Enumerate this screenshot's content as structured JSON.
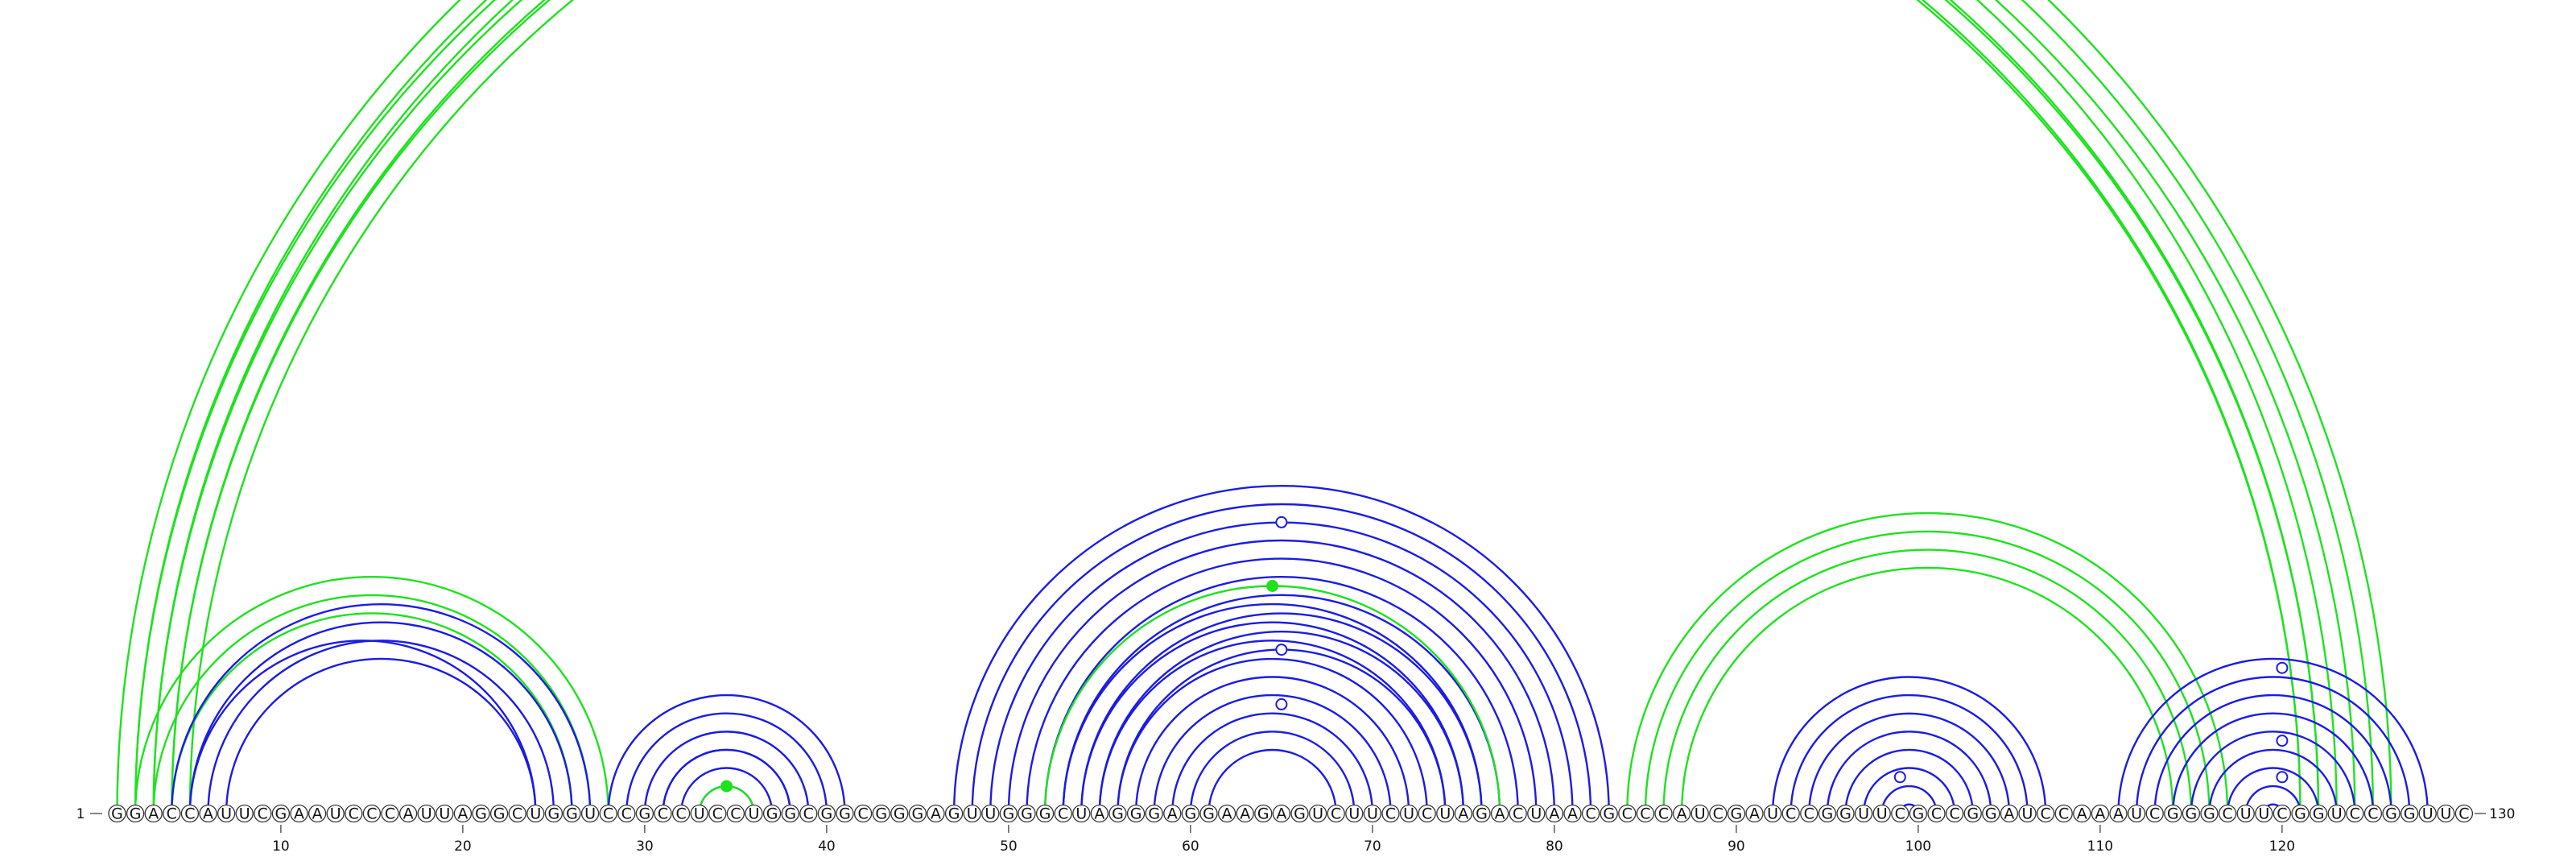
{
  "diagram": {
    "type": "rna-arc-diagram",
    "sequence": "GGACCAUUCGAAUCCCAUUAGGCUGGUCCGCCUCCUGGCGGCGGGAGUUGGGCUAGGGAGGAAGAGUCUUCUCUAGACUAACGCCCAUCGAUCCGGUUCGCCGGAUCCAAAUCGGGCUUCGGUCCGGUUC",
    "length": 130,
    "start_label": "1",
    "end_label": "130",
    "tick_labels": [
      "10",
      "20",
      "30",
      "40",
      "50",
      "60",
      "70",
      "80",
      "90",
      "100",
      "110",
      "120"
    ],
    "colors": {
      "blue": "#1b1be6",
      "green": "#1ee21e",
      "outline": "#333333"
    },
    "arc_groups": [
      {
        "color": "green",
        "outer": [
          1,
          126
        ],
        "count": 3
      },
      {
        "color": "green",
        "outer": [
          2,
          123
        ],
        "count": 3
      },
      {
        "color": "green",
        "outer": [
          4,
          122
        ],
        "count": 2
      },
      {
        "color": "green",
        "outer": [
          2,
          28
        ],
        "count": 3
      },
      {
        "color": "blue",
        "outer": [
          4,
          27
        ],
        "count": 4
      },
      {
        "color": "blue",
        "outer": [
          5,
          24
        ],
        "count": 1
      },
      {
        "color": "blue",
        "outer": [
          28,
          41
        ],
        "count": 4
      },
      {
        "color": "blue",
        "outer": [
          31,
          38
        ],
        "count": 3
      },
      {
        "color": "green",
        "outer": [
          33,
          36
        ],
        "count": 1
      },
      {
        "color": "blue",
        "outer": [
          47,
          83
        ],
        "count": 10
      },
      {
        "color": "green",
        "outer": [
          52,
          77
        ],
        "count": 1
      },
      {
        "color": "blue",
        "outer": [
          53,
          76
        ],
        "count": 9
      },
      {
        "color": "green",
        "outer": [
          84,
          117
        ],
        "count": 4
      },
      {
        "color": "blue",
        "outer": [
          92,
          107
        ],
        "count": 8
      },
      {
        "color": "blue",
        "outer": [
          111,
          128
        ],
        "count": 9
      }
    ],
    "markers": [
      {
        "fill": "hollow",
        "color": "green",
        "arc": [
          1,
          130
        ]
      },
      {
        "fill": "hollow",
        "color": "blue",
        "arc": [
          49,
          81
        ]
      },
      {
        "fill": "filled",
        "color": "green",
        "arc": [
          52,
          77
        ]
      },
      {
        "fill": "hollow",
        "color": "blue",
        "arc": [
          56,
          74
        ]
      },
      {
        "fill": "hollow",
        "color": "blue",
        "arc": [
          59,
          71
        ]
      },
      {
        "fill": "filled",
        "color": "green",
        "arc": [
          33,
          36
        ]
      },
      {
        "fill": "hollow",
        "color": "blue",
        "arc": [
          97,
          101
        ]
      },
      {
        "fill": "hollow",
        "color": "blue",
        "arc": [
          112,
          128
        ]
      },
      {
        "fill": "hollow",
        "color": "blue",
        "arc": [
          116,
          124
        ]
      },
      {
        "fill": "hollow",
        "color": "blue",
        "arc": [
          118,
          122
        ]
      }
    ]
  }
}
